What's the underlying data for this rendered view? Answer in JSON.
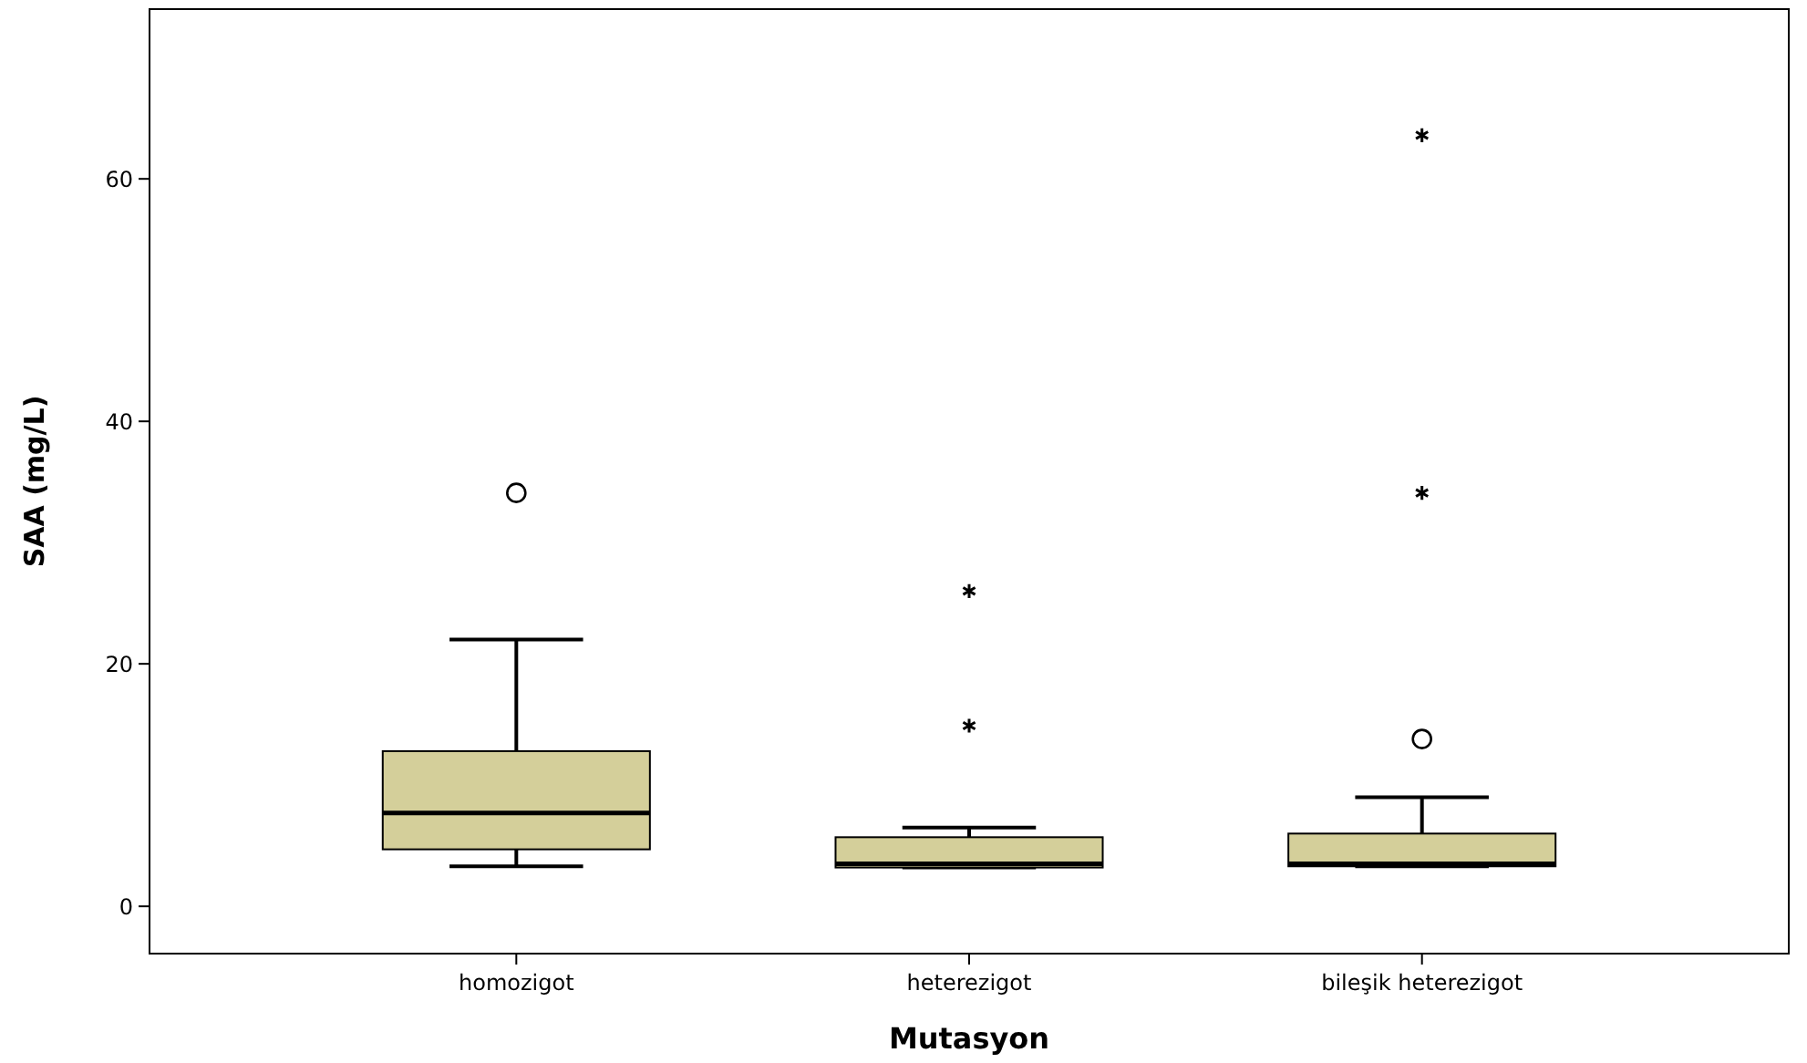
{
  "chart_data": {
    "type": "box",
    "xlabel": "Mutasyon",
    "ylabel": "SAA (mg/L)",
    "categories": [
      "homozigot",
      "heterezigot",
      "bileşik heterezigot"
    ],
    "color": "#d4cf9a",
    "boxes": [
      {
        "low": 3.3,
        "q1": 4.7,
        "median": 7.7,
        "q3": 12.8,
        "high": 22.0,
        "outliers": [
          34.1
        ]
      },
      {
        "low": 3.2,
        "q1": 3.2,
        "median": 3.5,
        "q3": 5.7,
        "high": 6.5,
        "outliers": [
          14.9,
          26.0
        ]
      },
      {
        "low": 3.3,
        "q1": 3.3,
        "median": 3.5,
        "q3": 6.0,
        "high": 9.0,
        "outliers": [
          13.8,
          34.1,
          63.6
        ]
      }
    ],
    "ylim": [
      -3.9,
      74
    ],
    "yticks": [
      0,
      20,
      40,
      60
    ],
    "grid": false
  }
}
